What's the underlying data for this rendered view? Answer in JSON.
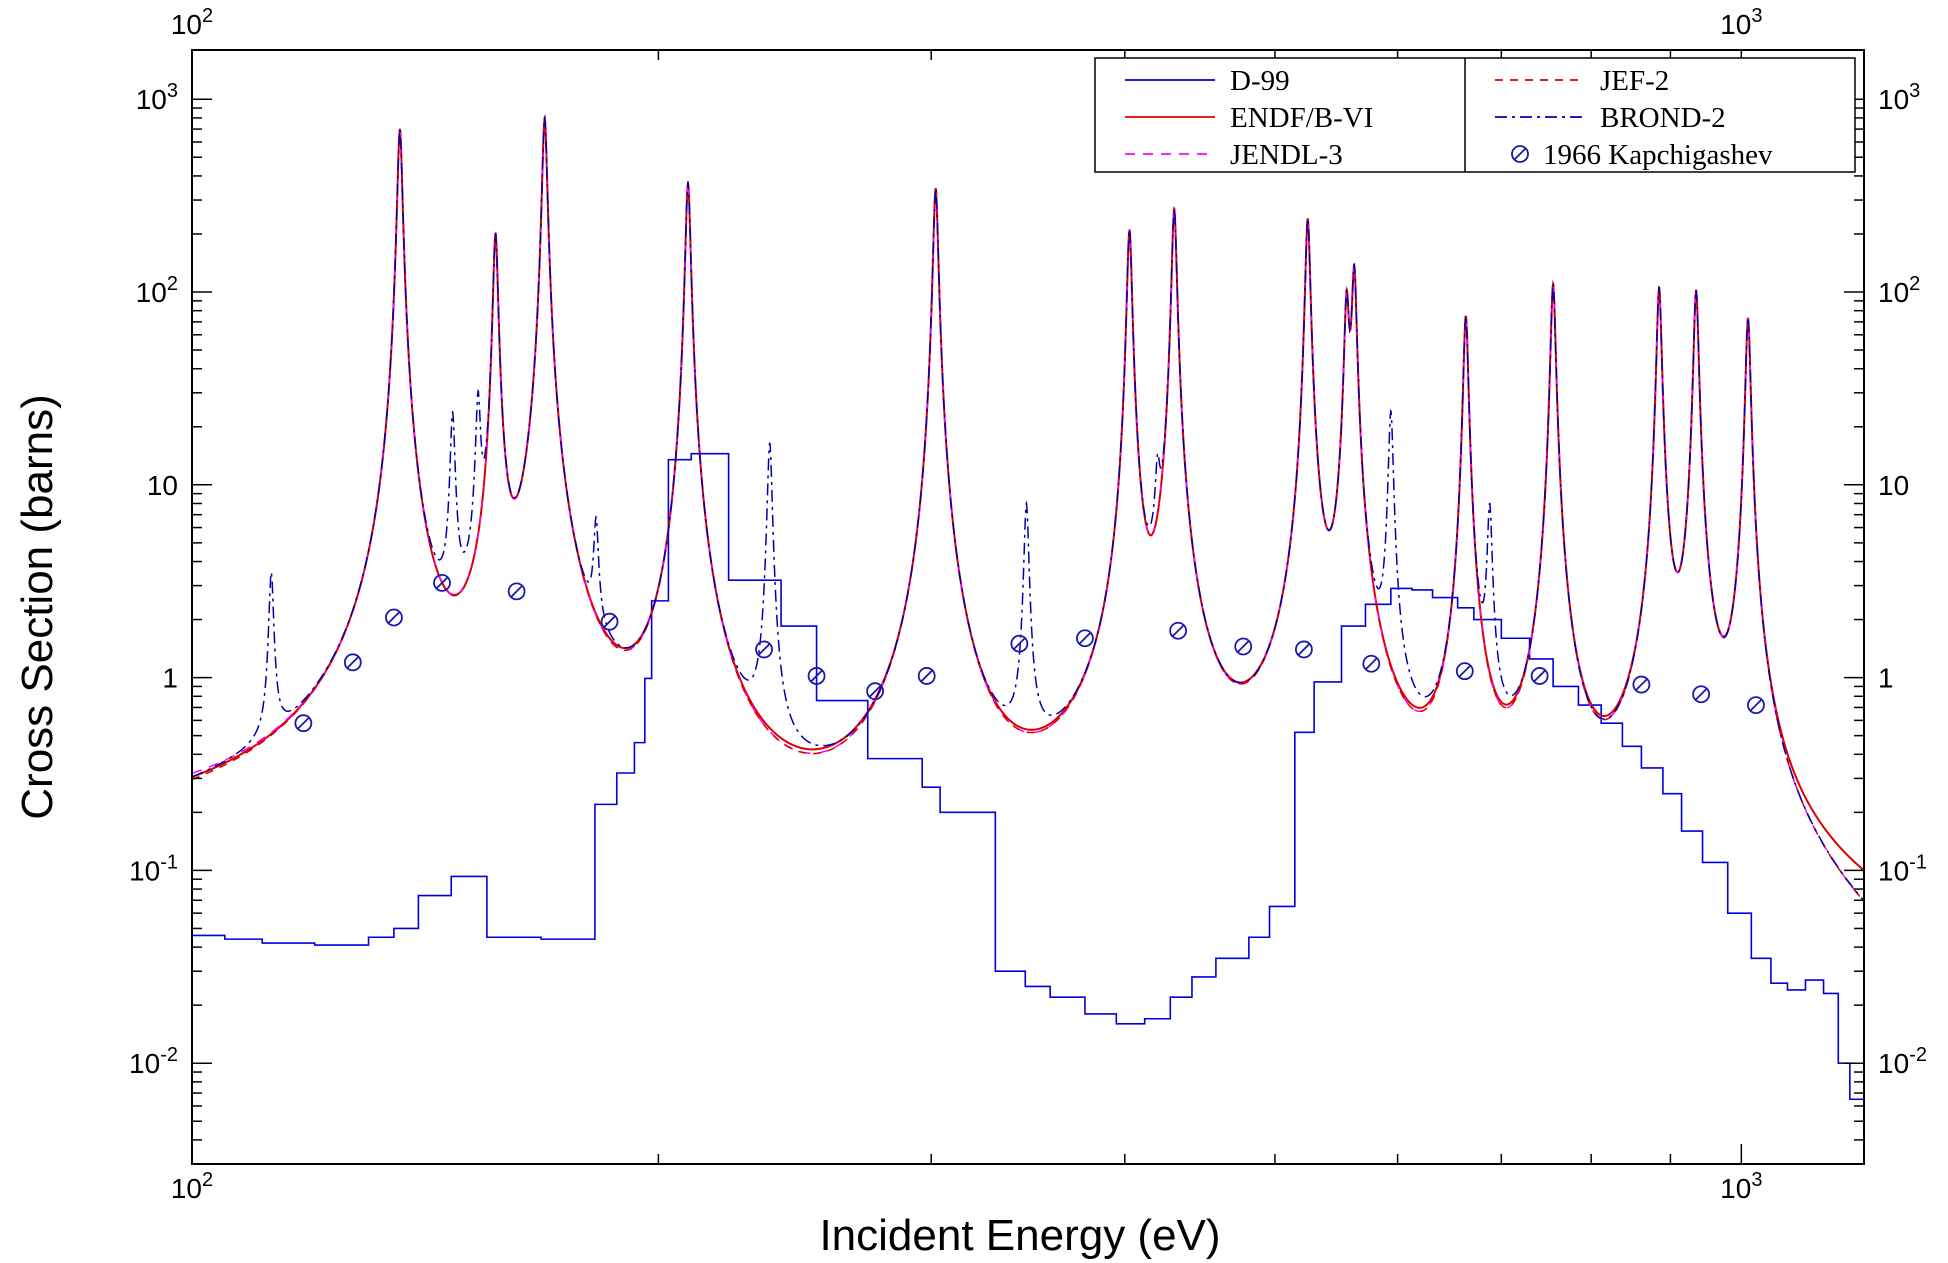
{
  "chart_data": {
    "type": "line",
    "title": "",
    "xlabel": "Incident Energy  (eV)",
    "ylabel": "Cross Section  (barns)",
    "x_scale": "log",
    "y_scale": "log",
    "xlim": [
      100,
      1200
    ],
    "ylim": [
      0.003,
      1800
    ],
    "grid": false,
    "legend_position": "top-right",
    "x_ticks": [
      {
        "value": 100,
        "base": "10",
        "exp": "2"
      },
      {
        "value": 1000,
        "base": "10",
        "exp": "3"
      }
    ],
    "y_ticks": [
      {
        "value": 0.01,
        "base": "10",
        "exp": "-2"
      },
      {
        "value": 0.1,
        "base": "10",
        "exp": "-1"
      },
      {
        "value": 1,
        "text": "1"
      },
      {
        "value": 10,
        "text": "10"
      },
      {
        "value": 100,
        "base": "10",
        "exp": "2"
      },
      {
        "value": 1000,
        "base": "10",
        "exp": "3"
      }
    ],
    "resonances": [
      {
        "e": 112.5,
        "peak": 3.0,
        "type": "br"
      },
      {
        "e": 136.2,
        "peak": 700,
        "type": "all"
      },
      {
        "e": 147.3,
        "peak": 21,
        "type": "br"
      },
      {
        "e": 153.0,
        "peak": 25,
        "type": "br"
      },
      {
        "e": 157.0,
        "peak": 200,
        "type": "all"
      },
      {
        "e": 168.9,
        "peak": 800,
        "type": "all"
      },
      {
        "e": 182.3,
        "peak": 4.7,
        "type": "br"
      },
      {
        "e": 209.0,
        "peak": 370,
        "type": "all"
      },
      {
        "e": 236.0,
        "peak": 16,
        "type": "br"
      },
      {
        "e": 302.0,
        "peak": 345,
        "type": "all"
      },
      {
        "e": 345.6,
        "peak": 7.5,
        "type": "br"
      },
      {
        "e": 402.8,
        "peak": 210,
        "type": "all"
      },
      {
        "e": 420.0,
        "peak": 7.5,
        "type": "br"
      },
      {
        "e": 430.5,
        "peak": 270,
        "type": "all"
      },
      {
        "e": 525.0,
        "peak": 240,
        "type": "all"
      },
      {
        "e": 556.3,
        "peak": 90,
        "type": "all"
      },
      {
        "e": 562.5,
        "peak": 130,
        "type": "all"
      },
      {
        "e": 594.0,
        "peak": 23,
        "type": "br"
      },
      {
        "e": 664.0,
        "peak": 75,
        "type": "all"
      },
      {
        "e": 688.0,
        "peak": 7.0,
        "type": "br"
      },
      {
        "e": 756.0,
        "peak": 110,
        "type": "all"
      },
      {
        "e": 885.0,
        "peak": 105,
        "type": "all"
      },
      {
        "e": 935.0,
        "peak": 102,
        "type": "all"
      },
      {
        "e": 1010.0,
        "peak": 73,
        "type": "all"
      }
    ],
    "series": [
      {
        "name": "D-99",
        "color": "#0000dd",
        "dash": "solid",
        "style": "step",
        "points": [
          [
            100,
            0.046
          ],
          [
            105,
            0.044
          ],
          [
            111,
            0.042
          ],
          [
            120,
            0.041
          ],
          [
            130,
            0.045
          ],
          [
            135,
            0.05
          ],
          [
            140,
            0.074
          ],
          [
            147,
            0.093
          ],
          [
            155,
            0.045
          ],
          [
            168,
            0.044
          ],
          [
            182,
            0.22
          ],
          [
            188,
            0.32
          ],
          [
            193,
            0.46
          ],
          [
            196,
            0.99
          ],
          [
            198,
            2.5
          ],
          [
            203,
            13.5
          ],
          [
            210,
            14.5
          ],
          [
            222,
            3.2
          ],
          [
            240,
            1.85
          ],
          [
            253,
            0.76
          ],
          [
            273,
            0.38
          ],
          [
            296,
            0.27
          ],
          [
            304,
            0.2
          ],
          [
            330,
            0.03
          ],
          [
            345,
            0.025
          ],
          [
            358,
            0.022
          ],
          [
            377,
            0.018
          ],
          [
            395,
            0.016
          ],
          [
            412,
            0.017
          ],
          [
            428,
            0.022
          ],
          [
            442,
            0.028
          ],
          [
            458,
            0.035
          ],
          [
            481,
            0.045
          ],
          [
            496,
            0.065
          ],
          [
            515,
            0.52
          ],
          [
            530,
            0.95
          ],
          [
            552,
            1.85
          ],
          [
            572,
            2.4
          ],
          [
            594,
            2.9
          ],
          [
            613,
            2.85
          ],
          [
            632,
            2.6
          ],
          [
            656,
            2.3
          ],
          [
            672,
            2.0
          ],
          [
            700,
            1.6
          ],
          [
            730,
            1.25
          ],
          [
            756,
            0.9
          ],
          [
            785,
            0.72
          ],
          [
            812,
            0.58
          ],
          [
            838,
            0.44
          ],
          [
            862,
            0.34
          ],
          [
            890,
            0.25
          ],
          [
            915,
            0.16
          ],
          [
            944,
            0.11
          ],
          [
            980,
            0.06
          ],
          [
            1015,
            0.035
          ],
          [
            1045,
            0.026
          ],
          [
            1071,
            0.024
          ],
          [
            1100,
            0.027
          ],
          [
            1130,
            0.023
          ],
          [
            1155,
            0.01
          ],
          [
            1175,
            0.0065
          ],
          [
            1200,
            0.0048
          ]
        ]
      },
      {
        "name": "ENDF/B-VI",
        "color": "#dd0000",
        "dash": "solid",
        "style": "resonance",
        "background": [
          [
            100,
            0.054
          ],
          [
            120,
            0.047
          ],
          [
            130,
            0.056
          ],
          [
            180,
            0.072
          ],
          [
            250,
            0.035
          ],
          [
            330,
            0.036
          ],
          [
            400,
            0.048
          ],
          [
            500,
            0.06
          ],
          [
            600,
            0.06
          ],
          [
            700,
            0.044
          ],
          [
            800,
            0.055
          ],
          [
            900,
            0.065
          ],
          [
            1000,
            0.06
          ],
          [
            1200,
            0.037
          ]
        ],
        "skip_types": [
          "br"
        ]
      },
      {
        "name": "JENDL-3",
        "color": "#ff00ff",
        "dash": "10 8",
        "style": "resonance",
        "background": [
          [
            100,
            0.068
          ],
          [
            120,
            0.054
          ],
          [
            135,
            0.056
          ],
          [
            160,
            0.045
          ],
          [
            250,
            0.016
          ],
          [
            330,
            0.018
          ],
          [
            400,
            0.035
          ],
          [
            500,
            0.044
          ],
          [
            600,
            0.032
          ],
          [
            700,
            0.017
          ],
          [
            800,
            0.028
          ],
          [
            900,
            0.05
          ],
          [
            1000,
            0.04
          ],
          [
            1200,
            0.006
          ]
        ],
        "skip_types": [
          "br"
        ]
      },
      {
        "name": "JEF-2",
        "color": "#dd0000",
        "dash": "8 7",
        "style": "resonance",
        "background": [
          [
            100,
            0.045
          ],
          [
            120,
            0.04
          ],
          [
            140,
            0.04
          ],
          [
            160,
            0.04
          ],
          [
            250,
            0.014
          ],
          [
            330,
            0.018
          ],
          [
            400,
            0.035
          ],
          [
            500,
            0.041
          ],
          [
            600,
            0.03
          ],
          [
            700,
            0.018
          ],
          [
            800,
            0.027
          ],
          [
            900,
            0.045
          ],
          [
            1000,
            0.041
          ],
          [
            1200,
            0.006
          ]
        ],
        "skip_types": [
          "br"
        ]
      },
      {
        "name": "BROND-2",
        "color": "#0000aa",
        "dash": "12 5 3 5",
        "style": "resonance",
        "background": [
          [
            100,
            0.045
          ],
          [
            120,
            0.04
          ],
          [
            140,
            0.04
          ],
          [
            160,
            0.04
          ],
          [
            250,
            0.014
          ],
          [
            330,
            0.018
          ],
          [
            400,
            0.035
          ],
          [
            500,
            0.041
          ],
          [
            600,
            0.03
          ],
          [
            700,
            0.018
          ],
          [
            800,
            0.027
          ],
          [
            900,
            0.045
          ],
          [
            1000,
            0.041
          ],
          [
            1200,
            0.006
          ]
        ],
        "skip_types": []
      },
      {
        "name": "1966 Kapchigashev",
        "color": "#1a1aaa",
        "dash": "none",
        "style": "marker",
        "points": [
          [
            118,
            0.58
          ],
          [
            127,
            1.2
          ],
          [
            135,
            2.05
          ],
          [
            145,
            3.1
          ],
          [
            162,
            2.8
          ],
          [
            186,
            1.95
          ],
          [
            234,
            1.4
          ],
          [
            253,
            1.02
          ],
          [
            276,
            0.85
          ],
          [
            298,
            1.02
          ],
          [
            342,
            1.5
          ],
          [
            377,
            1.6
          ],
          [
            433,
            1.75
          ],
          [
            477,
            1.45
          ],
          [
            522,
            1.4
          ],
          [
            577,
            1.18
          ],
          [
            663,
            1.08
          ],
          [
            741,
            1.02
          ],
          [
            862,
            0.92
          ],
          [
            942,
            0.82
          ],
          [
            1022,
            0.72
          ]
        ]
      }
    ]
  }
}
